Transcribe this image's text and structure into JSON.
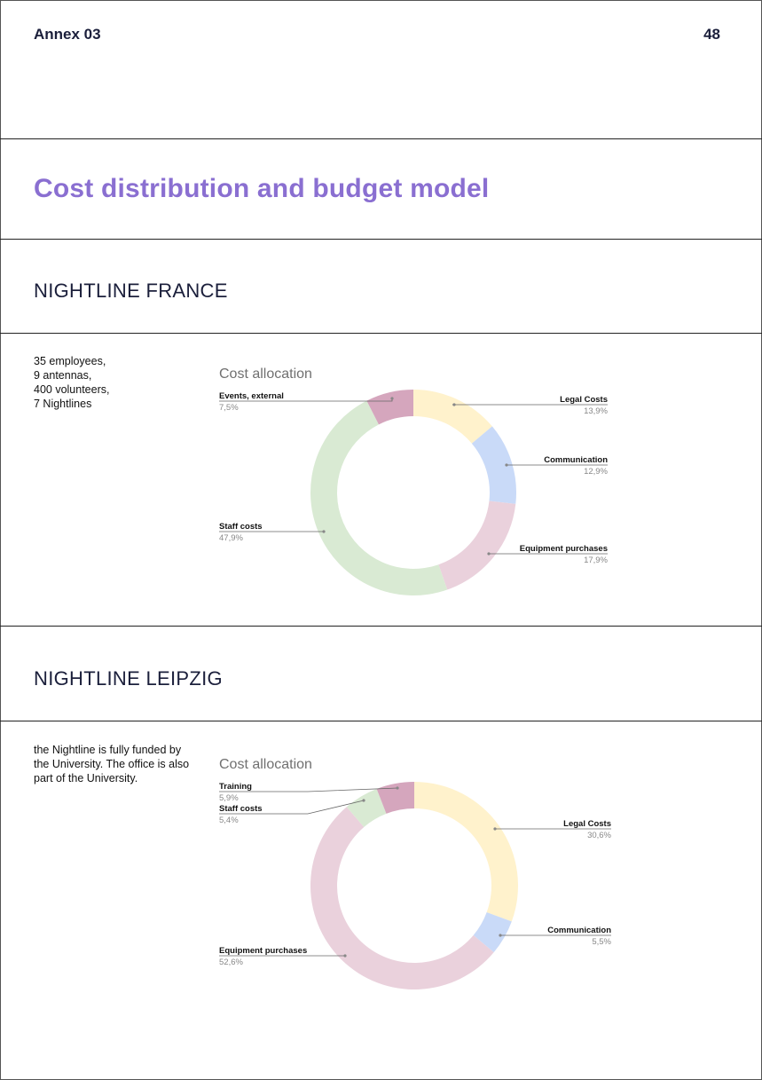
{
  "header": {
    "annex": "Annex 03",
    "page_number": "48"
  },
  "title": "Cost distribution and budget model",
  "sections": [
    {
      "heading": "NIGHTLINE FRANCE",
      "description_lines": [
        "35 employees,",
        "9 antennas,",
        "400  volunteers,",
        "7 Nightlines"
      ]
    },
    {
      "heading": "NIGHTLINE  LEIPZIG",
      "description_lines": [
        "the Nightline is fully funded by",
        "the University. The office is also",
        "part of the University."
      ]
    }
  ],
  "chart_data": [
    {
      "type": "pie",
      "title": "Cost allocation",
      "slices": [
        {
          "name": "Legal  Costs",
          "value": 13.9,
          "label": "13,9%",
          "color": "#fff2cc"
        },
        {
          "name": "Communication",
          "value": 12.9,
          "label": "12,9%",
          "color": "#c9daf8"
        },
        {
          "name": "Equipment purchases",
          "value": 17.9,
          "label": "17,9%",
          "color": "#ead1dc"
        },
        {
          "name": "Staff costs",
          "value": 47.9,
          "label": "47,9%",
          "color": "#d9ead3"
        },
        {
          "name": "Events, external",
          "value": 7.5,
          "label": "7,5%",
          "color": "#d5a6bd"
        }
      ]
    },
    {
      "type": "pie",
      "title": "Cost allocation",
      "slices": [
        {
          "name": "Legal  Costs",
          "value": 30.6,
          "label": "30,6%",
          "color": "#fff2cc"
        },
        {
          "name": "Communication",
          "value": 5.5,
          "label": "5,5%",
          "color": "#c9daf8"
        },
        {
          "name": "Equipment purchases",
          "value": 52.6,
          "label": "52,6%",
          "color": "#ead1dc"
        },
        {
          "name": "Staff costs",
          "value": 5.4,
          "label": "5,4%",
          "color": "#d9ead3"
        },
        {
          "name": "Training",
          "value": 5.9,
          "label": "5,9%",
          "color": "#d5a6bd"
        }
      ]
    }
  ]
}
